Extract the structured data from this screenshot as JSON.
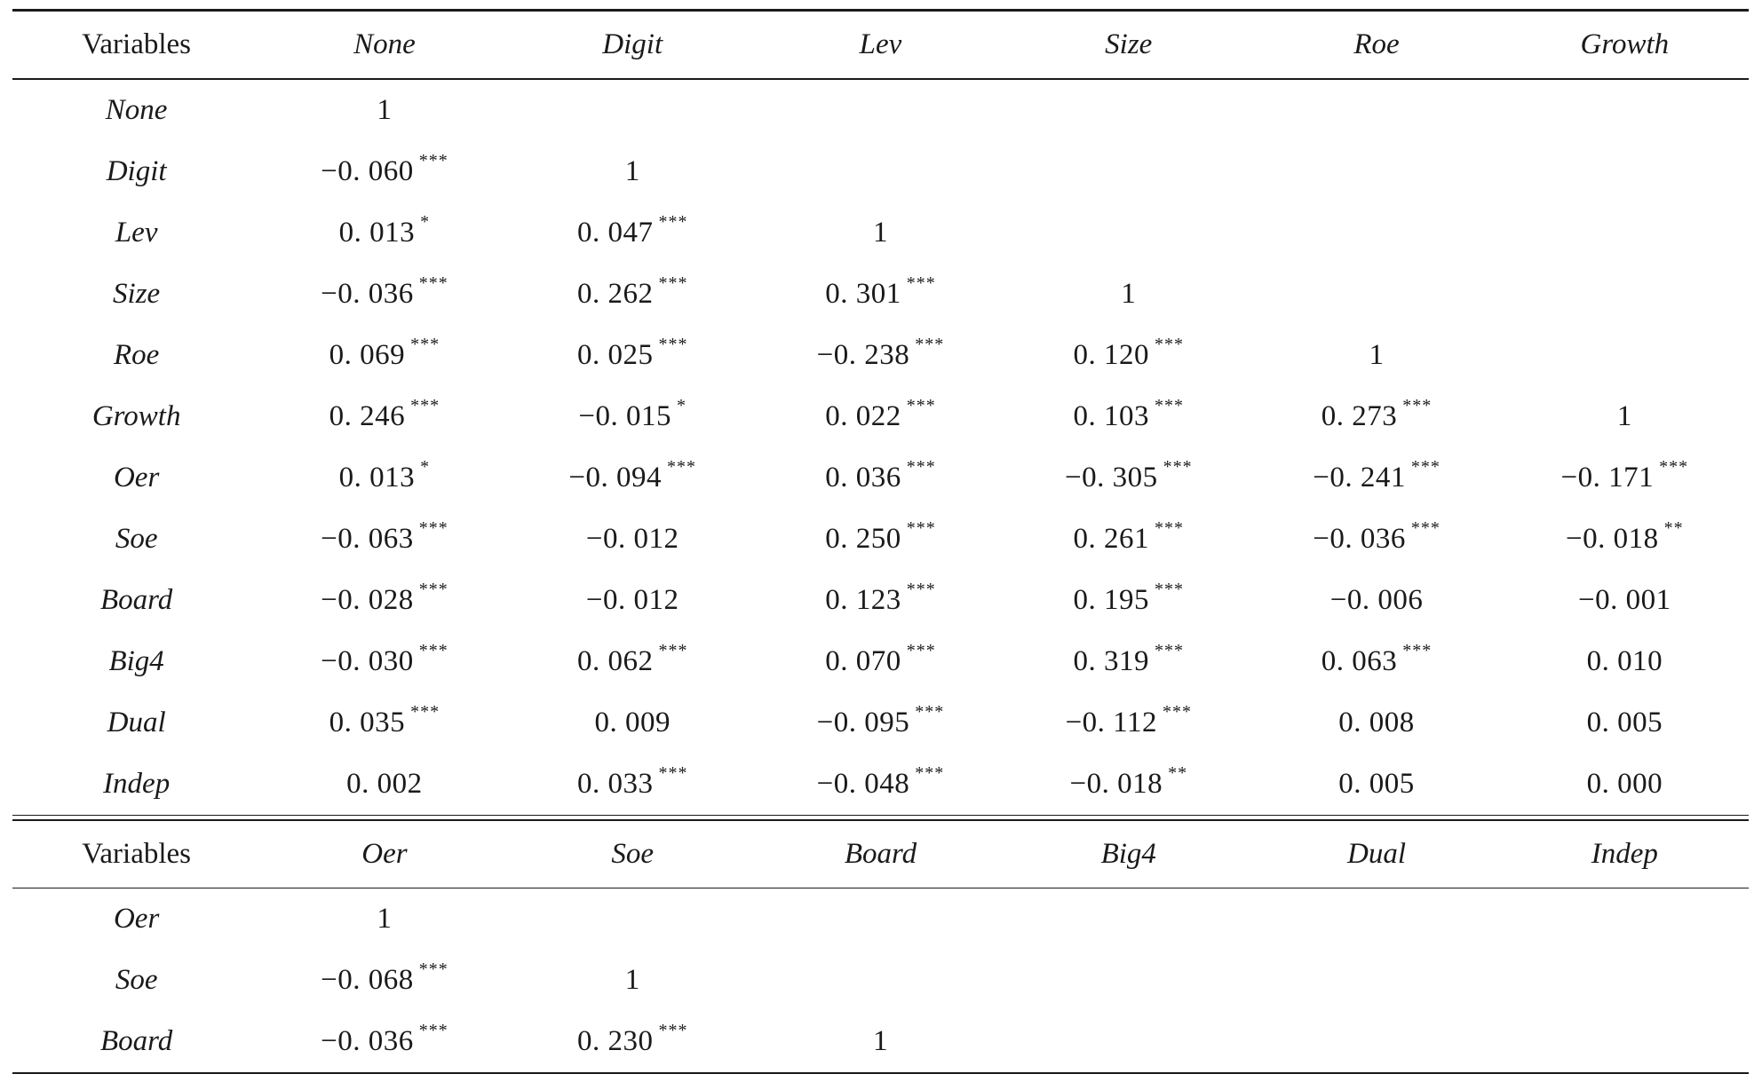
{
  "panel1": {
    "header": {
      "label": "Variables",
      "columns": [
        "None",
        "Digit",
        "Lev",
        "Size",
        "Roe",
        "Growth"
      ]
    },
    "rows": [
      {
        "var": "None",
        "cells": [
          {
            "v": "1",
            "s": ""
          },
          {
            "v": "",
            "s": ""
          },
          {
            "v": "",
            "s": ""
          },
          {
            "v": "",
            "s": ""
          },
          {
            "v": "",
            "s": ""
          },
          {
            "v": "",
            "s": ""
          }
        ]
      },
      {
        "var": "Digit",
        "cells": [
          {
            "v": "−0. 060",
            "s": "***"
          },
          {
            "v": "1",
            "s": ""
          },
          {
            "v": "",
            "s": ""
          },
          {
            "v": "",
            "s": ""
          },
          {
            "v": "",
            "s": ""
          },
          {
            "v": "",
            "s": ""
          }
        ]
      },
      {
        "var": "Lev",
        "cells": [
          {
            "v": "0. 013",
            "s": "*"
          },
          {
            "v": "0. 047",
            "s": "***"
          },
          {
            "v": "1",
            "s": ""
          },
          {
            "v": "",
            "s": ""
          },
          {
            "v": "",
            "s": ""
          },
          {
            "v": "",
            "s": ""
          }
        ]
      },
      {
        "var": "Size",
        "cells": [
          {
            "v": "−0. 036",
            "s": "***"
          },
          {
            "v": "0. 262",
            "s": "***"
          },
          {
            "v": "0. 301",
            "s": "***"
          },
          {
            "v": "1",
            "s": ""
          },
          {
            "v": "",
            "s": ""
          },
          {
            "v": "",
            "s": ""
          }
        ]
      },
      {
        "var": "Roe",
        "cells": [
          {
            "v": "0. 069",
            "s": "***"
          },
          {
            "v": "0. 025",
            "s": "***"
          },
          {
            "v": "−0. 238",
            "s": "***"
          },
          {
            "v": "0. 120",
            "s": "***"
          },
          {
            "v": "1",
            "s": ""
          },
          {
            "v": "",
            "s": ""
          }
        ]
      },
      {
        "var": "Growth",
        "cells": [
          {
            "v": "0. 246",
            "s": "***"
          },
          {
            "v": "−0. 015",
            "s": "*"
          },
          {
            "v": "0. 022",
            "s": "***"
          },
          {
            "v": "0. 103",
            "s": "***"
          },
          {
            "v": "0. 273",
            "s": "***"
          },
          {
            "v": "1",
            "s": ""
          }
        ]
      },
      {
        "var": "Oer",
        "cells": [
          {
            "v": "0. 013",
            "s": "*"
          },
          {
            "v": "−0. 094",
            "s": "***"
          },
          {
            "v": "0. 036",
            "s": "***"
          },
          {
            "v": "−0. 305",
            "s": "***"
          },
          {
            "v": "−0. 241",
            "s": "***"
          },
          {
            "v": "−0. 171",
            "s": "***"
          }
        ]
      },
      {
        "var": "Soe",
        "cells": [
          {
            "v": "−0. 063",
            "s": "***"
          },
          {
            "v": "−0. 012",
            "s": ""
          },
          {
            "v": "0. 250",
            "s": "***"
          },
          {
            "v": "0. 261",
            "s": "***"
          },
          {
            "v": "−0. 036",
            "s": "***"
          },
          {
            "v": "−0. 018",
            "s": "**"
          }
        ]
      },
      {
        "var": "Board",
        "cells": [
          {
            "v": "−0. 028",
            "s": "***"
          },
          {
            "v": "−0. 012",
            "s": ""
          },
          {
            "v": "0. 123",
            "s": "***"
          },
          {
            "v": "0. 195",
            "s": "***"
          },
          {
            "v": "−0. 006",
            "s": ""
          },
          {
            "v": "−0. 001",
            "s": ""
          }
        ]
      },
      {
        "var": "Big4",
        "cells": [
          {
            "v": "−0. 030",
            "s": "***"
          },
          {
            "v": "0. 062",
            "s": "***"
          },
          {
            "v": "0. 070",
            "s": "***"
          },
          {
            "v": "0. 319",
            "s": "***"
          },
          {
            "v": "0. 063",
            "s": "***"
          },
          {
            "v": "0. 010",
            "s": ""
          }
        ]
      },
      {
        "var": "Dual",
        "cells": [
          {
            "v": "0. 035",
            "s": "***"
          },
          {
            "v": "0. 009",
            "s": ""
          },
          {
            "v": "−0. 095",
            "s": "***"
          },
          {
            "v": "−0. 112",
            "s": "***"
          },
          {
            "v": "0. 008",
            "s": ""
          },
          {
            "v": "0. 005",
            "s": ""
          }
        ]
      },
      {
        "var": "Indep",
        "cells": [
          {
            "v": "0. 002",
            "s": ""
          },
          {
            "v": "0. 033",
            "s": "***"
          },
          {
            "v": "−0. 048",
            "s": "***"
          },
          {
            "v": "−0. 018",
            "s": "**"
          },
          {
            "v": "0. 005",
            "s": ""
          },
          {
            "v": "0. 000",
            "s": ""
          }
        ]
      }
    ]
  },
  "panel2": {
    "header": {
      "label": "Variables",
      "columns": [
        "Oer",
        "Soe",
        "Board",
        "Big4",
        "Dual",
        "Indep"
      ]
    },
    "rows": [
      {
        "var": "Oer",
        "cells": [
          {
            "v": "1",
            "s": ""
          },
          {
            "v": "",
            "s": ""
          },
          {
            "v": "",
            "s": ""
          },
          {
            "v": "",
            "s": ""
          },
          {
            "v": "",
            "s": ""
          },
          {
            "v": "",
            "s": ""
          }
        ]
      },
      {
        "var": "Soe",
        "cells": [
          {
            "v": "−0. 068",
            "s": "***"
          },
          {
            "v": "1",
            "s": ""
          },
          {
            "v": "",
            "s": ""
          },
          {
            "v": "",
            "s": ""
          },
          {
            "v": "",
            "s": ""
          },
          {
            "v": "",
            "s": ""
          }
        ]
      },
      {
        "var": "Board",
        "cells": [
          {
            "v": "−0. 036",
            "s": "***"
          },
          {
            "v": "0. 230",
            "s": "***"
          },
          {
            "v": "1",
            "s": ""
          },
          {
            "v": "",
            "s": ""
          },
          {
            "v": "",
            "s": ""
          },
          {
            "v": "",
            "s": ""
          }
        ]
      }
    ]
  }
}
